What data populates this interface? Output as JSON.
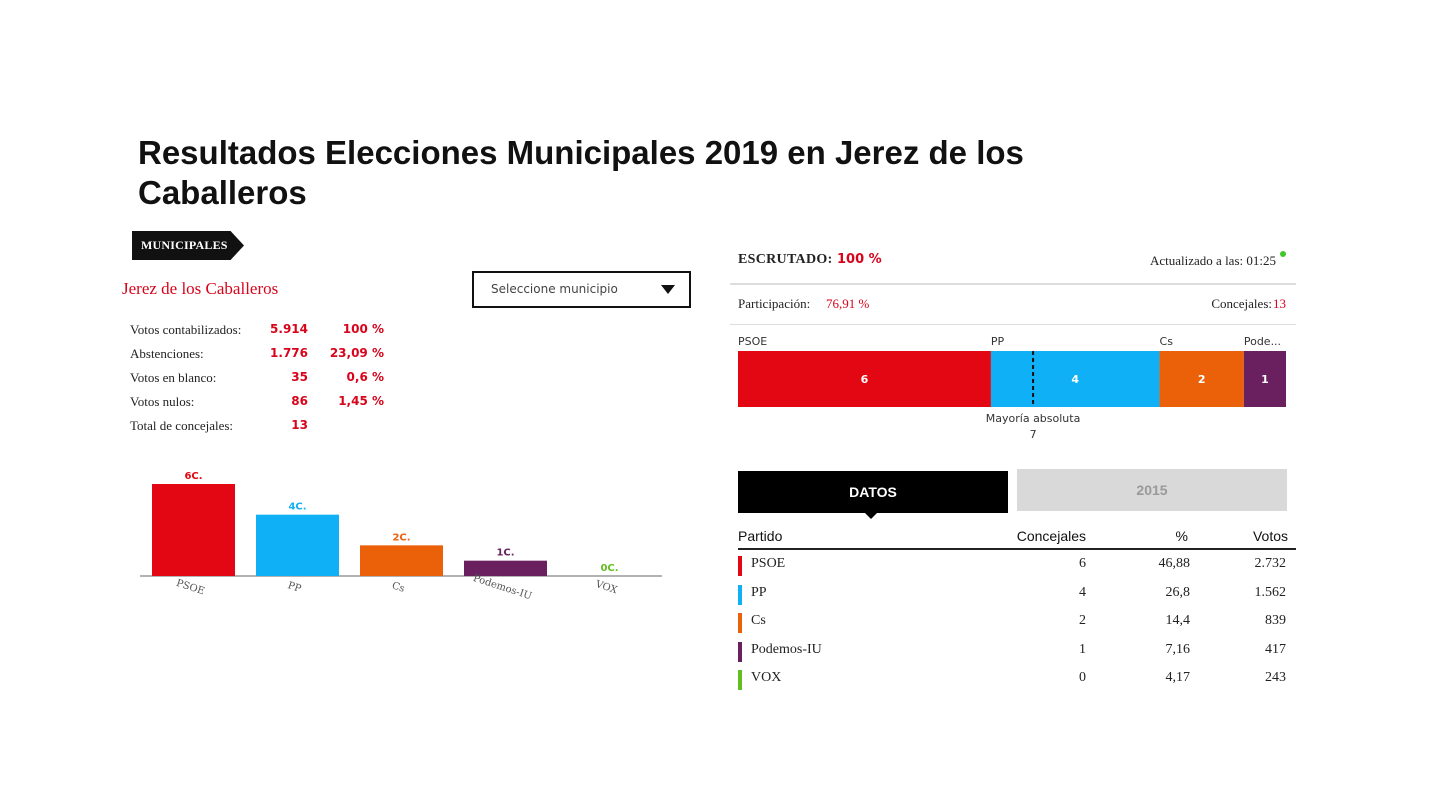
{
  "page": {
    "title": "Resultados Elecciones Municipales 2019 en Jerez de los Caballeros",
    "section_tag": "MUNICIPALES"
  },
  "municipality": {
    "name": "Jerez de los Caballeros",
    "select_placeholder": "Seleccione municipio"
  },
  "summary": [
    {
      "label": "Votos contabilizados:",
      "value": "5.914",
      "pct": "100 %"
    },
    {
      "label": "Abstenciones:",
      "value": "1.776",
      "pct": "23,09 %"
    },
    {
      "label": "Votos en blanco:",
      "value": "35",
      "pct": "0,6 %"
    },
    {
      "label": "Votos nulos:",
      "value": "86",
      "pct": "1,45 %"
    },
    {
      "label": "Total de concejales:",
      "value": "13",
      "pct": ""
    }
  ],
  "status": {
    "escrutado_label": "ESCRUTADO:",
    "escrutado_value": "100 %",
    "updated": "Actualizado a las: 01:25",
    "participation_label": "Participación:",
    "participation_value": "76,91 %",
    "concejales_label": "Concejales:",
    "concejales_value": "13",
    "live_color": "#43c52c"
  },
  "majority": {
    "label": "Mayoría absoluta",
    "value": "7",
    "seats": 7
  },
  "tabs": [
    {
      "label": "DATOS",
      "active": true
    },
    {
      "label": "2015",
      "active": false
    }
  ],
  "table": {
    "headers": [
      "Partido",
      "Concejales",
      "%",
      "Votos"
    ],
    "rows": [
      {
        "party": "PSOE",
        "concejales": "6",
        "pct": "46,88",
        "votes": "2.732",
        "color": "#e30613"
      },
      {
        "party": "PP",
        "concejales": "4",
        "pct": "26,8",
        "votes": "1.562",
        "color": "#0fb0f5"
      },
      {
        "party": "Cs",
        "concejales": "2",
        "pct": "14,4",
        "votes": "839",
        "color": "#eb6109"
      },
      {
        "party": "Podemos-IU",
        "concejales": "1",
        "pct": "7,16",
        "votes": "417",
        "color": "#6a1f5e"
      },
      {
        "party": "VOX",
        "concejales": "0",
        "pct": "4,17",
        "votes": "243",
        "color": "#63be21"
      }
    ]
  },
  "chart_data": [
    {
      "type": "bar",
      "categories": [
        "PSOE",
        "PP",
        "Cs",
        "Podemos-IU",
        "VOX"
      ],
      "values": [
        6,
        4,
        2,
        1,
        0
      ],
      "labels": [
        "6C.",
        "4C.",
        "2C.",
        "1C.",
        "0C."
      ],
      "colors": [
        "#e30613",
        "#0fb0f5",
        "#eb6109",
        "#6a1f5e",
        "#63be21"
      ],
      "ylim": [
        0,
        6
      ],
      "grid": false
    },
    {
      "type": "bar",
      "orientation": "horizontal-stacked",
      "categories": [
        "PSOE",
        "PP",
        "Cs",
        "Podemos-IU"
      ],
      "category_labels": [
        "PSOE",
        "PP",
        "Cs",
        "Pode..."
      ],
      "values": [
        6,
        4,
        2,
        1
      ],
      "total": 13,
      "colors": [
        "#e30613",
        "#0fb0f5",
        "#eb6109",
        "#6a1f5e"
      ],
      "majority_line": 7
    }
  ]
}
